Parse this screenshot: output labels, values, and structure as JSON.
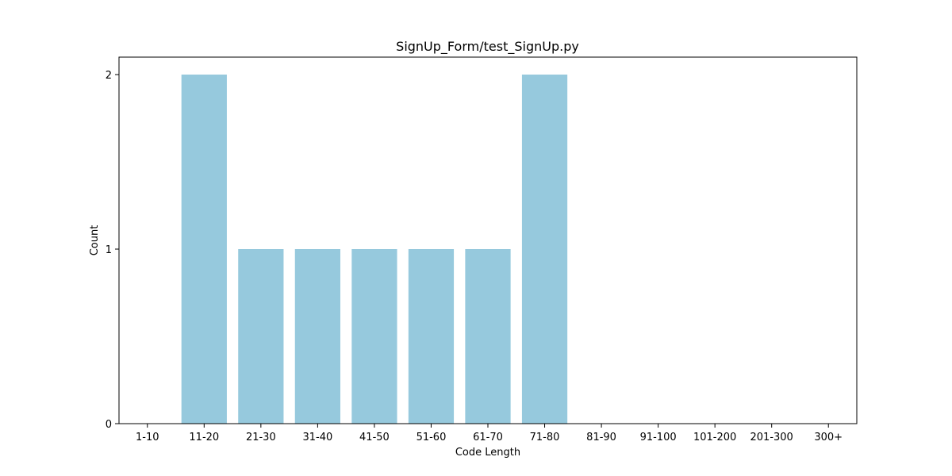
{
  "chart_data": {
    "type": "bar",
    "title": "SignUp_Form/test_SignUp.py",
    "xlabel": "Code Length",
    "ylabel": "Count",
    "categories": [
      "1-10",
      "11-20",
      "21-30",
      "31-40",
      "41-50",
      "51-60",
      "61-70",
      "71-80",
      "81-90",
      "91-100",
      "101-200",
      "201-300",
      "300+"
    ],
    "values": [
      0,
      2,
      1,
      1,
      1,
      1,
      1,
      2,
      0,
      0,
      0,
      0,
      0
    ],
    "yticks": [
      0,
      1,
      2
    ],
    "ylim": [
      0,
      2.1
    ],
    "bar_color": "#96c9dd",
    "grid": false,
    "legend": "none"
  }
}
